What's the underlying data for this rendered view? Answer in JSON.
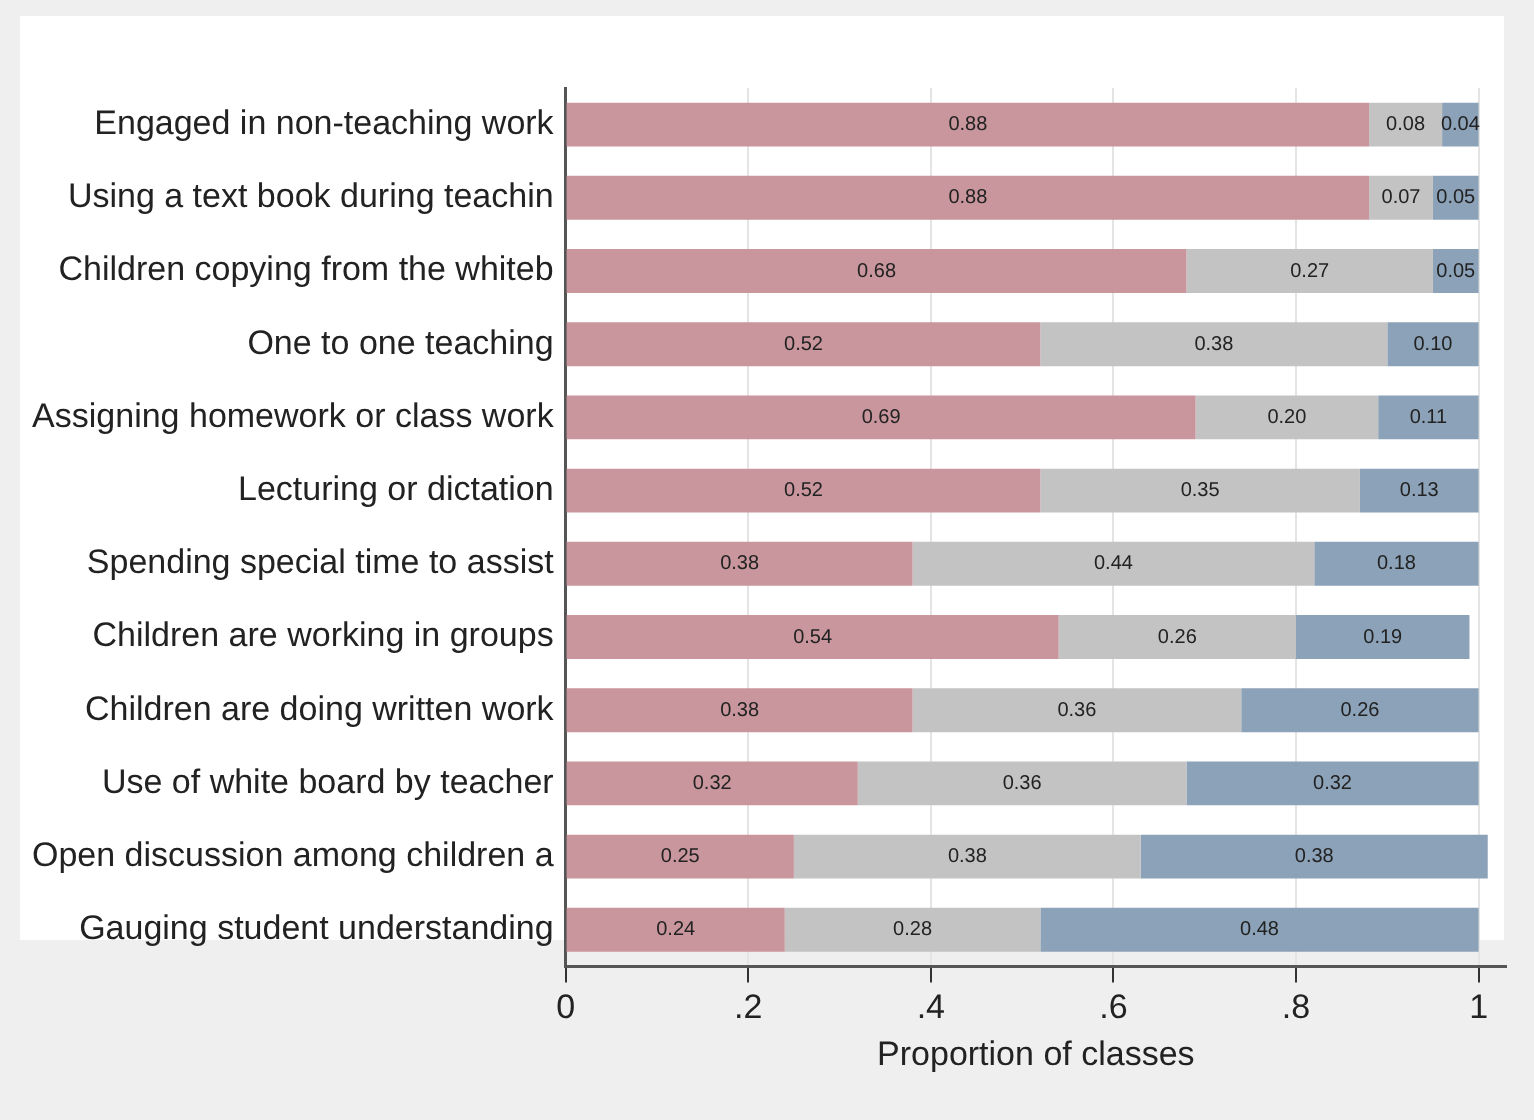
{
  "chart_data": {
    "type": "bar",
    "orientation": "horizontal",
    "stacked": true,
    "xlabel": "Proportion of classes",
    "categories": [
      "Engaged in non-teaching work",
      "Using a text book during teachin",
      "Children copying from the whiteb",
      "One to one teaching",
      "Assigning homework or class work",
      "Lecturing or dictation",
      "Spending special time to assist",
      "Children are working in groups",
      "Children are doing written work",
      "Use of white board by teacher",
      "Open discussion among children a",
      "Gauging student understanding"
    ],
    "series": [
      {
        "color": "#c8969c",
        "values": [
          0.88,
          0.88,
          0.68,
          0.52,
          0.69,
          0.52,
          0.38,
          0.54,
          0.38,
          0.32,
          0.25,
          0.24
        ],
        "value_labels": [
          "0.88",
          "0.88",
          "0.68",
          "0.52",
          "0.69",
          "0.52",
          "0.38",
          "0.54",
          "0.38",
          "0.32",
          "0.25",
          "0.24"
        ]
      },
      {
        "color": "#c3c3c3",
        "values": [
          0.08,
          0.07,
          0.27,
          0.38,
          0.2,
          0.35,
          0.44,
          0.26,
          0.36,
          0.36,
          0.38,
          0.28
        ],
        "value_labels": [
          "0.08",
          "0.07",
          "0.27",
          "0.38",
          "0.20",
          "0.35",
          "0.44",
          "0.26",
          "0.36",
          "0.36",
          "0.38",
          "0.28"
        ]
      },
      {
        "color": "#8ca2b8",
        "values": [
          0.04,
          0.05,
          0.05,
          0.1,
          0.11,
          0.13,
          0.18,
          0.19,
          0.26,
          0.32,
          0.38,
          0.48
        ],
        "value_labels": [
          "0.04",
          "0.05",
          "0.05",
          "0.10",
          "0.11",
          "0.13",
          "0.18",
          "0.19",
          "0.26",
          "0.32",
          "0.38",
          "0.48"
        ]
      }
    ],
    "xlim": [
      0,
      1.03
    ],
    "xticks": [
      0,
      {
        "value": 0.2,
        "label": ".2"
      },
      {
        "value": 0.4,
        "label": ".4"
      },
      {
        "value": 0.6,
        "label": ".6"
      },
      {
        "value": 0.8,
        "label": ".8"
      },
      1
    ],
    "grid": "x"
  }
}
